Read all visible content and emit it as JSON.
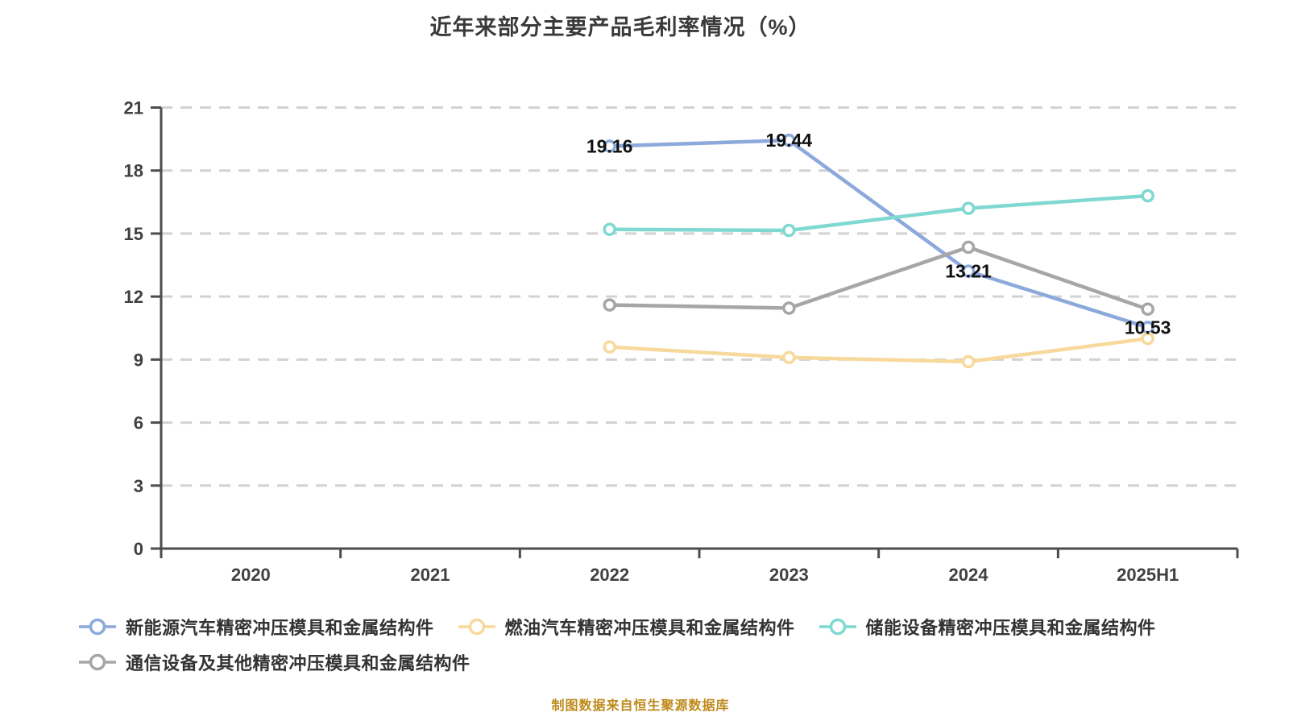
{
  "title": "近年来部分主要产品毛利率情况（%）",
  "footer": "制图数据来自恒生聚源数据库",
  "colors": {
    "background": "#ffffff",
    "title_text": "#3a3a3a",
    "axis_line": "#4d4d4d",
    "tick_label": "#404040",
    "gridline": "#d2d2d2",
    "data_label": "#111111",
    "legend_text": "#333333",
    "footer_text": "#be8a1a",
    "marker_fill": "#ffffff"
  },
  "chart_data": {
    "type": "line",
    "title": "近年来部分主要产品毛利率情况（%）",
    "xlabel": "",
    "ylabel": "",
    "categories": [
      "2020",
      "2021",
      "2022",
      "2023",
      "2024",
      "2025H1"
    ],
    "ylim": [
      0,
      21
    ],
    "ytick_step": 3,
    "yticks": [
      0,
      3,
      6,
      9,
      12,
      15,
      18,
      21
    ],
    "grid": "horizontal-dashed",
    "legend_position": "bottom",
    "series": [
      {
        "name": "新能源汽车精密冲压模具和金属结构件",
        "color": "#8ca9dc",
        "values": [
          null,
          null,
          19.16,
          19.44,
          13.21,
          10.53
        ],
        "point_labels": [
          null,
          null,
          "19.16",
          "19.44",
          "13.21",
          "10.53"
        ]
      },
      {
        "name": "燃油汽车精密冲压模具和金属结构件",
        "color": "#f7d99c",
        "values": [
          null,
          null,
          9.6,
          9.1,
          8.9,
          10.0
        ],
        "point_labels": [
          null,
          null,
          null,
          null,
          null,
          null
        ]
      },
      {
        "name": "储能设备精密冲压模具和金属结构件",
        "color": "#7fd8d2",
        "values": [
          null,
          null,
          15.2,
          15.15,
          16.2,
          16.8
        ],
        "point_labels": [
          null,
          null,
          null,
          null,
          null,
          null
        ]
      },
      {
        "name": "通信设备及其他精密冲压模具和金属结构件",
        "color": "#a6a6a6",
        "values": [
          null,
          null,
          11.6,
          11.45,
          14.35,
          11.4
        ],
        "point_labels": [
          null,
          null,
          null,
          null,
          null,
          null
        ]
      }
    ]
  }
}
